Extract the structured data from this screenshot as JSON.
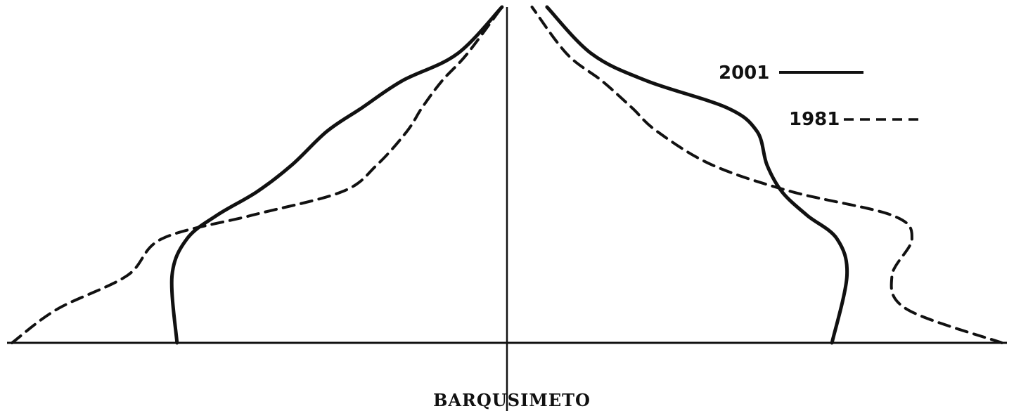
{
  "chart_data": {
    "type": "line",
    "subtype": "population-pyramid-outline",
    "title": "",
    "xlabel": "BARQUSIMETO",
    "ylabel": "",
    "grid": false,
    "legend_position": "top-right",
    "x_axis": "age-group (bottom to top, youngest to oldest)",
    "series": [
      {
        "name": "2001",
        "style": "solid",
        "color": "#111111",
        "left": [
          [
            0,
            0.66
          ],
          [
            0.2,
            0.67
          ],
          [
            0.31,
            0.64
          ],
          [
            0.38,
            0.58
          ],
          [
            0.45,
            0.5
          ],
          [
            0.53,
            0.43
          ],
          [
            0.63,
            0.36
          ],
          [
            0.7,
            0.29
          ],
          [
            0.78,
            0.21
          ],
          [
            0.86,
            0.1
          ],
          [
            1.0,
            0.01
          ]
        ],
        "right": [
          [
            0,
            0.65
          ],
          [
            0.2,
            0.68
          ],
          [
            0.31,
            0.66
          ],
          [
            0.38,
            0.6
          ],
          [
            0.45,
            0.55
          ],
          [
            0.53,
            0.52
          ],
          [
            0.63,
            0.5
          ],
          [
            0.7,
            0.44
          ],
          [
            0.78,
            0.28
          ],
          [
            0.86,
            0.17
          ],
          [
            1.0,
            0.08
          ]
        ]
      },
      {
        "name": "1981",
        "style": "dashed",
        "color": "#111111",
        "left": [
          [
            0,
            0.99
          ],
          [
            0.1,
            0.9
          ],
          [
            0.2,
            0.76
          ],
          [
            0.31,
            0.69
          ],
          [
            0.38,
            0.51
          ],
          [
            0.45,
            0.33
          ],
          [
            0.53,
            0.26
          ],
          [
            0.63,
            0.2
          ],
          [
            0.7,
            0.17
          ],
          [
            0.78,
            0.13
          ],
          [
            0.86,
            0.08
          ],
          [
            1.0,
            0.01
          ]
        ],
        "right": [
          [
            0,
            0.99
          ],
          [
            0.1,
            0.8
          ],
          [
            0.2,
            0.77
          ],
          [
            0.31,
            0.81
          ],
          [
            0.38,
            0.77
          ],
          [
            0.45,
            0.57
          ],
          [
            0.53,
            0.41
          ],
          [
            0.63,
            0.3
          ],
          [
            0.7,
            0.25
          ],
          [
            0.78,
            0.19
          ],
          [
            0.86,
            0.12
          ],
          [
            1.0,
            0.05
          ]
        ]
      }
    ],
    "legend": [
      {
        "label": "2001",
        "style": "solid"
      },
      {
        "label": "1981",
        "style": "dashed"
      }
    ]
  }
}
